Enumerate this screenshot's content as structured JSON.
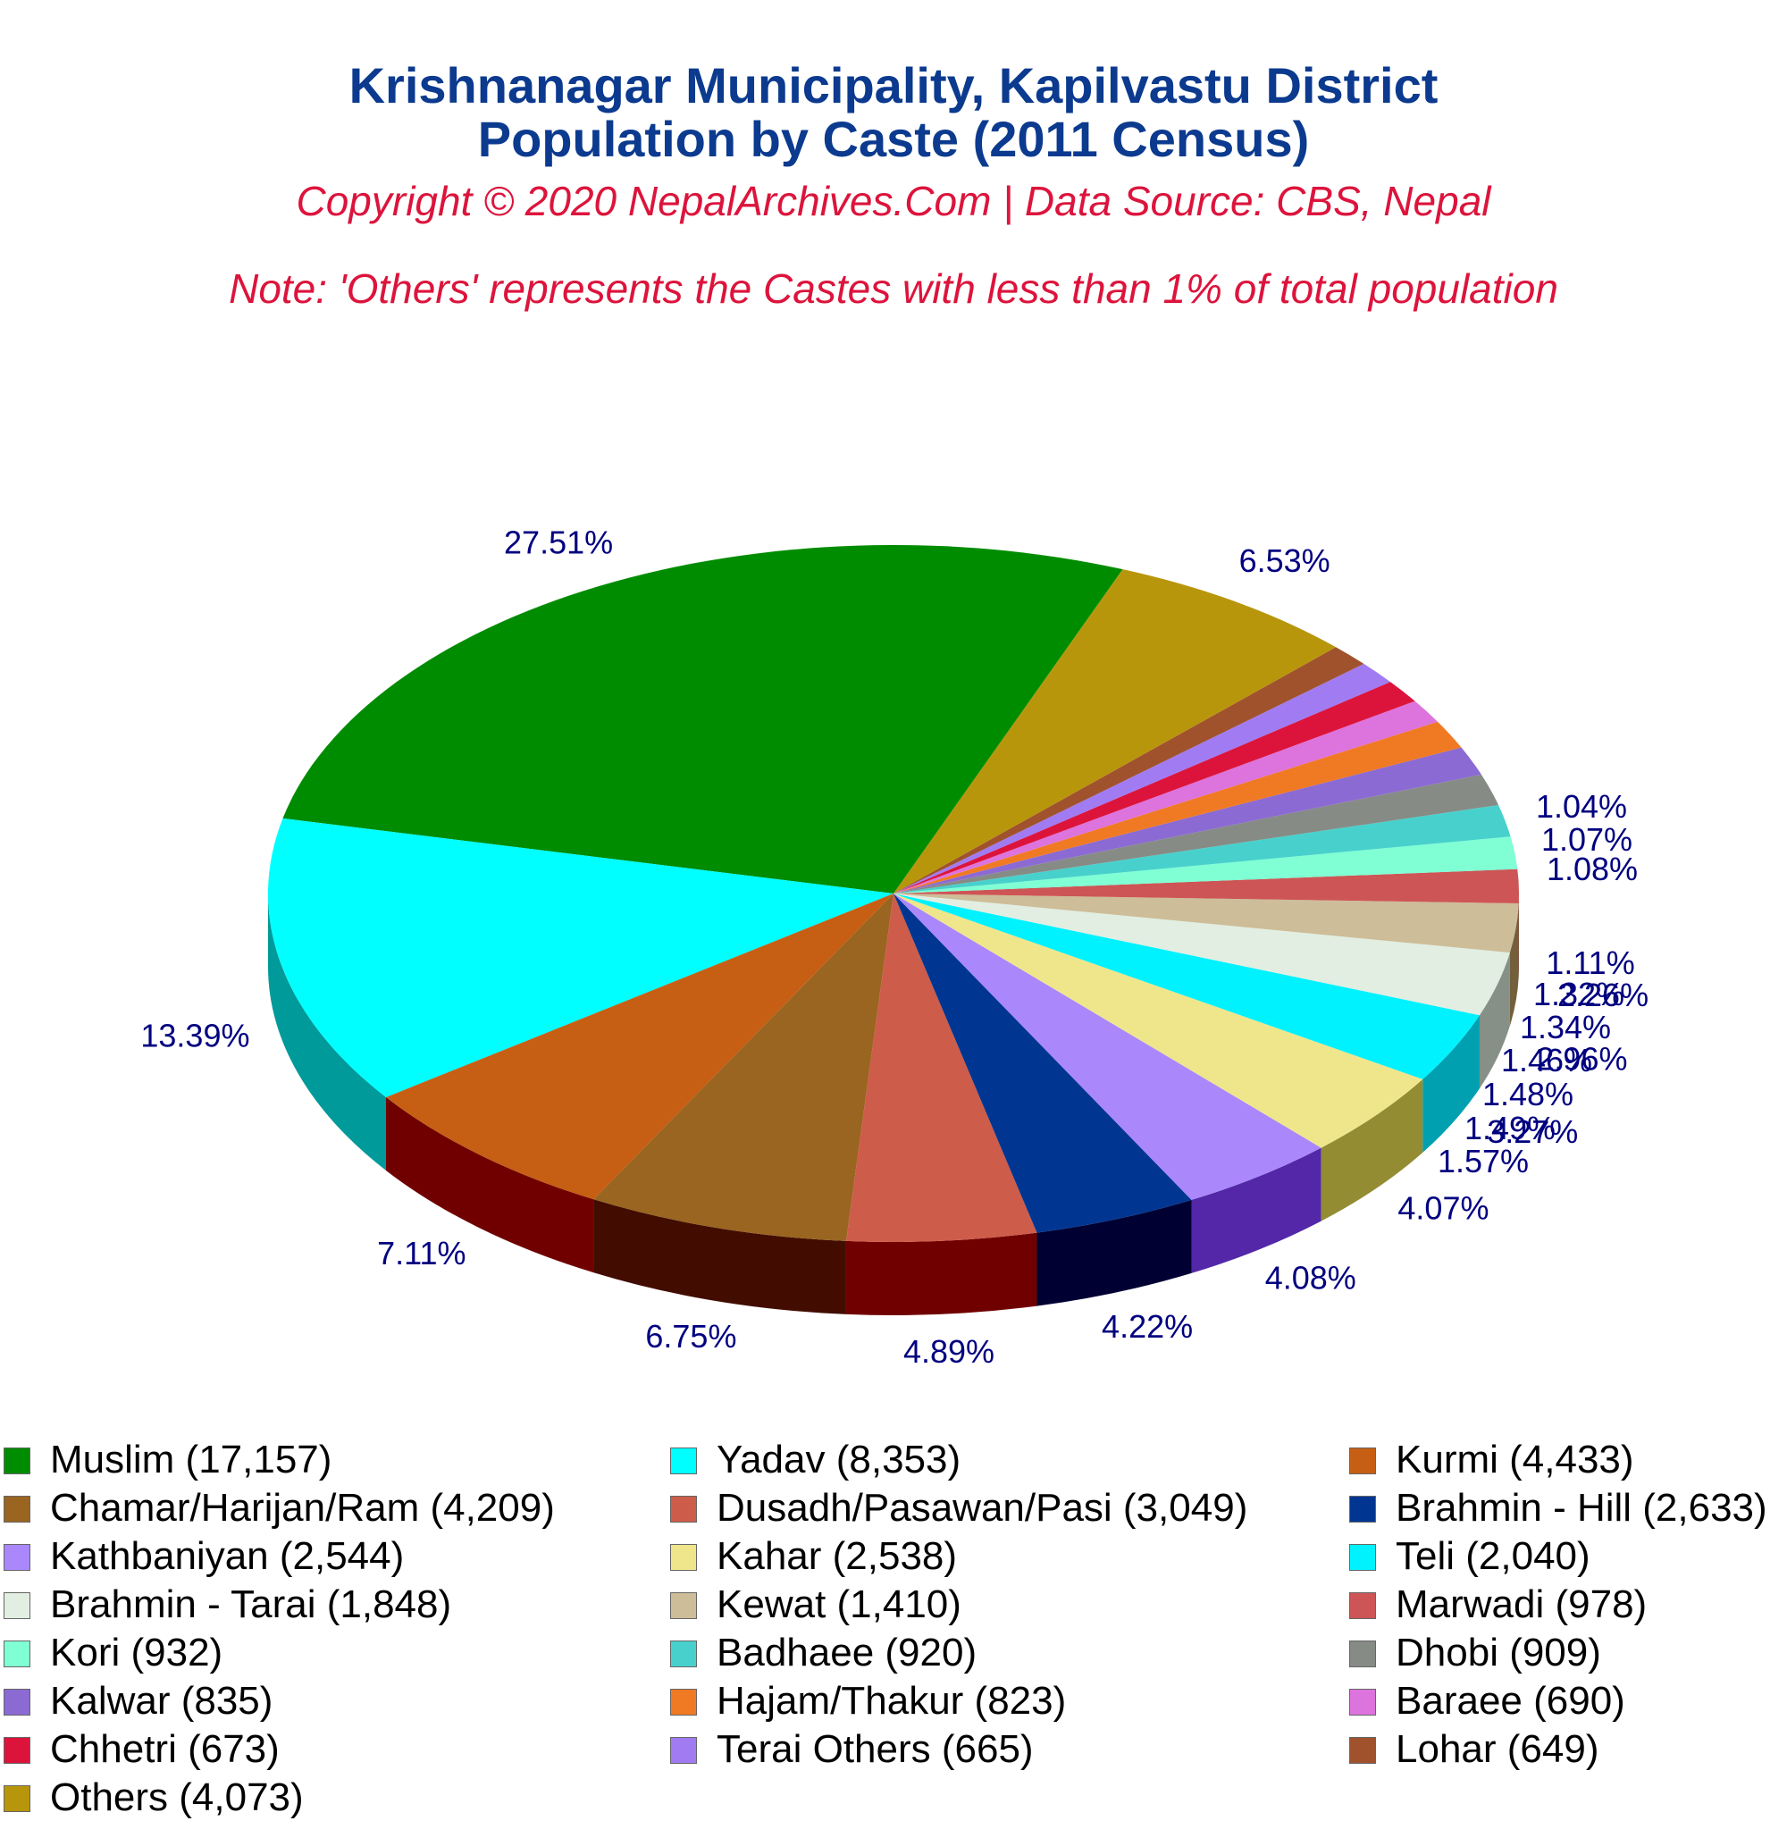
{
  "title": {
    "line1": "Krishnanagar Municipality, Kapilvastu District",
    "line2": "Population by Caste (2011 Census)"
  },
  "copyright": "Copyright © 2020 NepalArchives.Com | Data Source: CBS, Nepal",
  "note": "Note: 'Others' represents the Castes with less than 1% of total population",
  "colors": {
    "title": "#0b3a8f",
    "subtitle": "#dc143c",
    "pct_label": "#000080"
  },
  "chart_data": {
    "type": "pie",
    "style": "3d",
    "title": "Krishnanagar Municipality, Kapilvastu District Population by Caste (2011 Census)",
    "legend_position": "bottom",
    "slices": [
      {
        "label": "Muslim (17,157)",
        "name": "Muslim",
        "value": 17157,
        "pct": "27.51%",
        "color": "#008c00",
        "side": "#005200"
      },
      {
        "label": "Yadav (8,353)",
        "name": "Yadav",
        "value": 8353,
        "pct": "13.39%",
        "color": "#00ffff",
        "side": "#009a9a"
      },
      {
        "label": "Kurmi (4,433)",
        "name": "Kurmi",
        "value": 4433,
        "pct": "7.11%",
        "color": "#c65f14",
        "side": "#700000"
      },
      {
        "label": "Chamar/Harijan/Ram (4,209)",
        "name": "Chamar/Harijan/Ram",
        "value": 4209,
        "pct": "6.75%",
        "color": "#996520",
        "side": "#420d00"
      },
      {
        "label": "Dusadh/Pasawan/Pasi (3,049)",
        "name": "Dusadh/Pasawan/Pasi",
        "value": 3049,
        "pct": "4.89%",
        "color": "#cd5c4a",
        "side": "#700000"
      },
      {
        "label": "Brahmin - Hill (2,633)",
        "name": "Brahmin - Hill",
        "value": 2633,
        "pct": "4.22%",
        "color": "#003691",
        "side": "#000033"
      },
      {
        "label": "Kathbaniyan (2,544)",
        "name": "Kathbaniyan",
        "value": 2544,
        "pct": "4.08%",
        "color": "#aa87fb",
        "side": "#5327a8"
      },
      {
        "label": "Kahar (2,538)",
        "name": "Kahar",
        "value": 2538,
        "pct": "4.07%",
        "color": "#efe68c",
        "side": "#948c33"
      },
      {
        "label": "Teli (2,040)",
        "name": "Teli",
        "value": 2040,
        "pct": "3.27%",
        "color": "#00f2ff",
        "side": "#00a0b0"
      },
      {
        "label": "Brahmin - Tarai (1,848)",
        "name": "Brahmin - Tarai",
        "value": 1848,
        "pct": "2.96%",
        "color": "#e1eee1",
        "side": "#869086"
      },
      {
        "label": "Kewat (1,410)",
        "name": "Kewat",
        "value": 1410,
        "pct": "2.26%",
        "color": "#cdbd98",
        "side": "#735f3b"
      },
      {
        "label": "Marwadi (978)",
        "name": "Marwadi",
        "value": 978,
        "pct": "1.57%",
        "color": "#cd5555",
        "side": "#700000"
      },
      {
        "label": "Kori (932)",
        "name": "Kori",
        "value": 932,
        "pct": "1.49%",
        "color": "#80ffd4",
        "side": "#26a077"
      },
      {
        "label": "Badhaee (920)",
        "name": "Badhaee",
        "value": 920,
        "pct": "1.48%",
        "color": "#48d1cc",
        "side": "#007670"
      },
      {
        "label": "Dhobi (909)",
        "name": "Dhobi",
        "value": 909,
        "pct": "1.46%",
        "color": "#868b86",
        "side": "#2e332e"
      },
      {
        "label": "Kalwar (835)",
        "name": "Kalwar",
        "value": 835,
        "pct": "1.34%",
        "color": "#8c6ad3",
        "side": "#301077"
      },
      {
        "label": "Hajam/Thakur (823)",
        "name": "Hajam/Thakur",
        "value": 823,
        "pct": "1.32%",
        "color": "#f07a24",
        "side": "#952000"
      },
      {
        "label": "Baraee (690)",
        "name": "Baraee",
        "value": 690,
        "pct": "1.11%",
        "color": "#dd73dd",
        "side": "#821882"
      },
      {
        "label": "Chhetri (673)",
        "name": "Chhetri",
        "value": 673,
        "pct": "1.08%",
        "color": "#dc143c",
        "side": "#800000"
      },
      {
        "label": "Terai Others (665)",
        "name": "Terai Others",
        "value": 665,
        "pct": "1.07%",
        "color": "#a17bf2",
        "side": "#461f97"
      },
      {
        "label": "Lohar (649)",
        "name": "Lohar",
        "value": 649,
        "pct": "1.04%",
        "color": "#a0522d",
        "side": "#450000"
      },
      {
        "label": "Others (4,073)",
        "name": "Others",
        "value": 4073,
        "pct": "6.53%",
        "color": "#b8960c",
        "side": "#5d3b00"
      }
    ]
  }
}
